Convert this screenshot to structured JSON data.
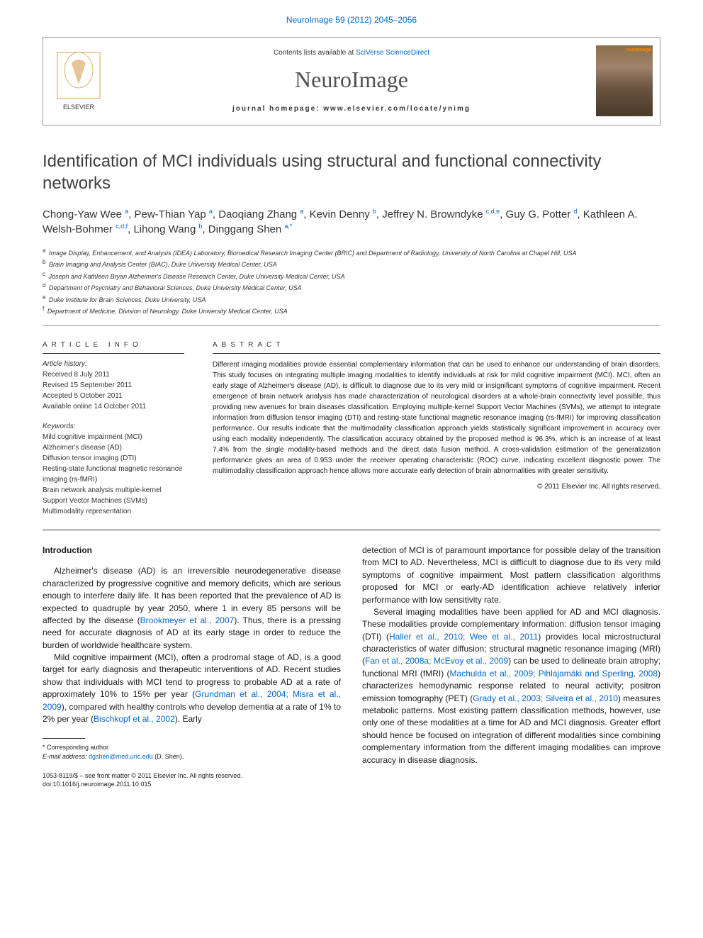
{
  "header": {
    "citation_link": "NeuroImage 59 (2012) 2045–2056",
    "contents_prefix": "Contents lists available at ",
    "contents_site": "SciVerse ScienceDirect",
    "journal_title": "NeuroImage",
    "homepage_label": "journal homepage: www.elsevier.com/locate/ynimg",
    "cover_tag": "euroImage",
    "publisher": "ELSEVIER"
  },
  "article": {
    "title": "Identification of MCI individuals using structural and functional connectivity networks",
    "authors_html": "Chong-Yaw Wee <sup>a</sup>, Pew-Thian Yap <sup>a</sup>, Daoqiang Zhang <sup>a</sup>, Kevin Denny <sup>b</sup>, Jeffrey N. Browndyke <sup>c,d,e</sup>, Guy G. Potter <sup>d</sup>, Kathleen A. Welsh-Bohmer <sup>c,d,f</sup>, Lihong Wang <sup>b</sup>, Dinggang Shen <sup>a,*</sup>",
    "affiliations": [
      {
        "sup": "a",
        "text": "Image Display, Enhancement, and Analysis (IDEA) Laboratory, Biomedical Research Imaging Center (BRIC) and Department of Radiology, University of North Carolina at Chapel Hill, USA"
      },
      {
        "sup": "b",
        "text": "Brain Imaging and Analysis Center (BIAC), Duke University Medical Center, USA"
      },
      {
        "sup": "c",
        "text": "Joseph and Kathleen Bryan Alzheimer's Disease Research Center, Duke University Medical Center, USA"
      },
      {
        "sup": "d",
        "text": "Department of Psychiatry and Behavioral Sciences, Duke University Medical Center, USA"
      },
      {
        "sup": "e",
        "text": "Duke Institute for Brain Sciences, Duke University, USA"
      },
      {
        "sup": "f",
        "text": "Department of Medicine, Division of Neurology, Duke University Medical Center, USA"
      }
    ]
  },
  "info": {
    "section_label": "ARTICLE INFO",
    "history_label": "Article history:",
    "history_dates": [
      "Received 8 July 2011",
      "Revised 15 September 2011",
      "Accepted 5 October 2011",
      "Available online 14 October 2011"
    ],
    "keywords_label": "Keywords:",
    "keywords": [
      "Mild cognitive impairment (MCI)",
      "Alzheimer's disease (AD)",
      "Diffusion tensor imaging (DTI)",
      "Resting-state functional magnetic resonance imaging (rs-fMRI)",
      "Brain network analysis multiple-kernel Support Vector Machines (SVMs)",
      "Multimodality representation"
    ]
  },
  "abstract": {
    "section_label": "ABSTRACT",
    "text": "Different imaging modalities provide essential complementary information that can be used to enhance our understanding of brain disorders. This study focuses on integrating multiple imaging modalities to identify individuals at risk for mild cognitive impairment (MCI). MCI, often an early stage of Alzheimer's disease (AD), is difficult to diagnose due to its very mild or insignificant symptoms of cognitive impairment. Recent emergence of brain network analysis has made characterization of neurological disorders at a whole-brain connectivity level possible, thus providing new avenues for brain diseases classification. Employing multiple-kernel Support Vector Machines (SVMs), we attempt to integrate information from diffusion tensor imaging (DTI) and resting-state functional magnetic resonance imaging (rs-fMRI) for improving classification performance. Our results indicate that the multimodality classification approach yields statistically significant improvement in accuracy over using each modality independently. The classification accuracy obtained by the proposed method is 96.3%, which is an increase of at least 7.4% from the single modality-based methods and the direct data fusion method. A cross-validation estimation of the generalization performance gives an area of 0.953 under the receiver operating characteristic (ROC) curve, indicating excellent diagnostic power. The multimodality classification approach hence allows more accurate early detection of brain abnormalities with greater sensitivity.",
    "copyright": "© 2011 Elsevier Inc. All rights reserved."
  },
  "body": {
    "intro_heading": "Introduction",
    "para1_pre": "Alzheimer's disease (AD) is an irreversible neurodegenerative disease characterized by progressive cognitive and memory deficits, which are serious enough to interfere daily life. It has been reported that the prevalence of AD is expected to quadruple by year 2050, where 1 in every 85 persons will be affected by the disease (",
    "para1_link": "Brookmeyer et al., 2007",
    "para1_post": "). Thus, there is a pressing need for accurate diagnosis of AD at its early stage in order to reduce the burden of worldwide healthcare system.",
    "para2_pre": "Mild cognitive impairment (MCI), often a prodromal stage of AD, is a good target for early diagnosis and therapeutic interventions of AD. Recent studies show that individuals with MCI tend to progress to probable AD at a rate of approximately 10% to 15% per year (",
    "para2_link1": "Grundman et al., 2004; Misra et al., 2009",
    "para2_mid": "), compared with healthy controls who develop dementia at a rate of 1% to 2% per year (",
    "para2_link2": "Bischkopf et al., 2002",
    "para2_post": "). Early",
    "col2_para1": "detection of MCI is of paramount importance for possible delay of the transition from MCI to AD. Nevertheless, MCI is difficult to diagnose due to its very mild symptoms of cognitive impairment. Most pattern classification algorithms proposed for MCI or early-AD identification achieve relatively inferior performance with low sensitivity rate.",
    "col2_para2_pre": "Several imaging modalities have been applied for AD and MCI diagnosis. These modalities provide complementary information: diffusion tensor imaging (DTI) (",
    "col2_link1": "Haller et al., 2010; Wee et al., 2011",
    "col2_para2_mid1": ") provides local microstructural characteristics of water diffusion; structural magnetic resonance imaging (MRI) (",
    "col2_link2": "Fan et al., 2008a; McEvoy et al., 2009",
    "col2_para2_mid2": ") can be used to delineate brain atrophy; functional MRI (fMRI) (",
    "col2_link3": "Machulda et al., 2009; Pihlajamäki and Sperling, 2008",
    "col2_para2_mid3": ") characterizes hemodynamic response related to neural activity; positron emission tomography (PET) (",
    "col2_link4": "Grady et al., 2003; Silveira et al., 2010",
    "col2_para2_post": ") measures metabolic patterns. Most existing pattern classification methods, however, use only one of these modalities at a time for AD and MCI diagnosis. Greater effort should hence be focused on integration of different modalities since combining complementary information from the different imaging modalities can improve accuracy in disease diagnosis."
  },
  "footnote": {
    "corresponding": "* Corresponding author.",
    "email_label": "E-mail address: ",
    "email": "dgshen@med.unc.edu",
    "email_name": " (D. Shen)."
  },
  "footer": {
    "issn": "1053-8119/$ – see front matter © 2011 Elsevier Inc. All rights reserved.",
    "doi": "doi:10.1016/j.neuroimage.2011.10.015"
  },
  "colors": {
    "link": "#0066cc",
    "text": "#1a1a1a",
    "title_gray": "#505050",
    "border": "#999999"
  }
}
